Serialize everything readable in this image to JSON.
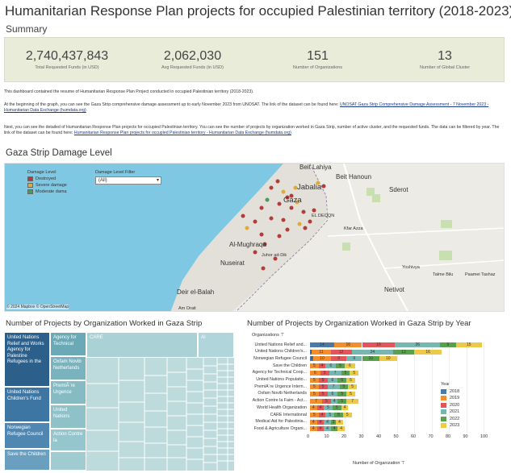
{
  "page": {
    "title": "Humanitarian Response Plan projects for occupied Palestinian territory (2018-2023)"
  },
  "summary": {
    "label": "Summary",
    "kpis": [
      {
        "value": "2,740,437,843",
        "label": "Total Requested Funds (in USD)"
      },
      {
        "value": "2,062,030",
        "label": "Avg Requested Funds (in USD)"
      },
      {
        "value": "151",
        "label": "Number of Organizations"
      },
      {
        "value": "13",
        "label": "Number of Global Cluster"
      }
    ]
  },
  "description": {
    "p1": "This dashboard contained the resume of Humanitarian Response Plan Project conducted in occupied Palestinian territory (2018-2023).",
    "p2": "At the beginning of the graph, you can see the Gaza Strip comprehensive damage assessment up to early November 2023 from UNOSAT. The link of the dataset can be found here:",
    "p2_link": "UNOSAT Gaza Strip Comprehensive Damage Assessment - 7 November 2023 - Humanitarian Data Exchange (humdata.org)",
    "p3": "Next, you can see the detailed of Humanitarian Response Plan projects for occupied Palestinian territory. You can see the number of projects by organization worked in Gaza Strip, number of active cluster, and the requested funds. The data can be filtered by year. The link of the dataset can be found here:",
    "p3_link": "Humanitarian Response Plan projects for occupied Palestinian territory - Humanitarian Data Exchange (humdata.org)"
  },
  "map": {
    "title": "Gaza Strip Damage Level",
    "legend_title": "Damage Level",
    "legend": [
      {
        "label": "Destroyed",
        "color": "#b53a3a"
      },
      {
        "label": "Severe damage",
        "color": "#e0a93a"
      },
      {
        "label": "Moderate dama",
        "color": "#4a9a5a"
      }
    ],
    "filter_label": "Damage Level Filter",
    "filter_value": "(All)",
    "places": {
      "beit_lahiya": "Beit Lahiya",
      "beit_hanoun": "Beit Hanoun",
      "jabalia": "Jabalia",
      "gaza": "Gaza",
      "sderot": "Sderot",
      "el_deqqn": "EL DEQQN",
      "kfar_azza": "Kfar Azza",
      "al_mughraqa": "Al-Mughraqa",
      "juhor_ad_dik": "Juhor ad-Dik",
      "nuseirat": "Nuseirat",
      "yoshivya": "Yoshivya",
      "talme_bilu": "Talme Bilu",
      "paamei_tashaz": "Paamei Tashaz",
      "deir_el_balah": "Deir el-Balah",
      "netivot": "Netivot",
      "am_orait": "Am Orait"
    },
    "copyright": "© 2024 Mapbox  © OpenStreetMap"
  },
  "treemap": {
    "title": "Number of Projects by Organization Worked in Gaza Strip",
    "cells": [
      "United Nations Relief and Works Agency for Palestine Refugees in the",
      "United Nations Children's Fund",
      "Norwegian Refugee Council",
      "Save the Children",
      "Agency for Technical",
      "Oxfam Novib Netherlands",
      "PremiÃ¨re Urgence",
      "United Nations",
      "Action Contre la",
      "CARE",
      "AI"
    ]
  },
  "chart_data": {
    "type": "bar",
    "title": "Number of Projects by Organization Worked in Gaza Strip by Year",
    "ylabel": "Organizations",
    "xlabel": "Number of Organization",
    "xlim": [
      0,
      100
    ],
    "xticks": [
      "0",
      "10",
      "20",
      "30",
      "40",
      "50",
      "60",
      "70",
      "80",
      "90",
      "100"
    ],
    "categories": [
      "United Nations Relief and...",
      "United Nations Children's...",
      "Norwegian Refugee Council",
      "Save the Children",
      "Agency for Technical Coop...",
      "United Nations Populatio...",
      "PremiÃ¨re Urgence Intern...",
      "Oxfam Novib Netherlands",
      "Action Contre la Faim - Act...",
      "World Health Organization",
      "CARE International",
      "Medical Aid for Palestinia...",
      "Food & Agriculture Organi..."
    ],
    "series": [
      {
        "name": "2018",
        "color": "#4e79a7",
        "values": [
          14,
          1,
          2,
          0,
          0,
          0,
          0,
          0,
          0,
          0,
          0,
          0,
          0
        ]
      },
      {
        "name": "2019",
        "color": "#f28e2b",
        "values": [
          16,
          11,
          10,
          5,
          6,
          5,
          5,
          5,
          7,
          4,
          5,
          4,
          4
        ]
      },
      {
        "name": "2020",
        "color": "#e15759",
        "values": [
          19,
          12,
          9,
          4,
          5,
          5,
          5,
          5,
          5,
          4,
          4,
          4,
          4
        ]
      },
      {
        "name": "2021",
        "color": "#76b7b2",
        "values": [
          26,
          24,
          9,
          6,
          7,
          6,
          7,
          6,
          4,
          5,
          5,
          4,
          4
        ]
      },
      {
        "name": "2022",
        "color": "#59a14f",
        "values": [
          9,
          12,
          10,
          5,
          5,
          5,
          5,
          5,
          5,
          5,
          5,
          3,
          4
        ]
      },
      {
        "name": "2023",
        "color": "#edc948",
        "values": [
          15,
          16,
          10,
          6,
          5,
          5,
          5,
          5,
          7,
          4,
          5,
          4,
          4
        ]
      }
    ],
    "legend_title": "Year"
  }
}
